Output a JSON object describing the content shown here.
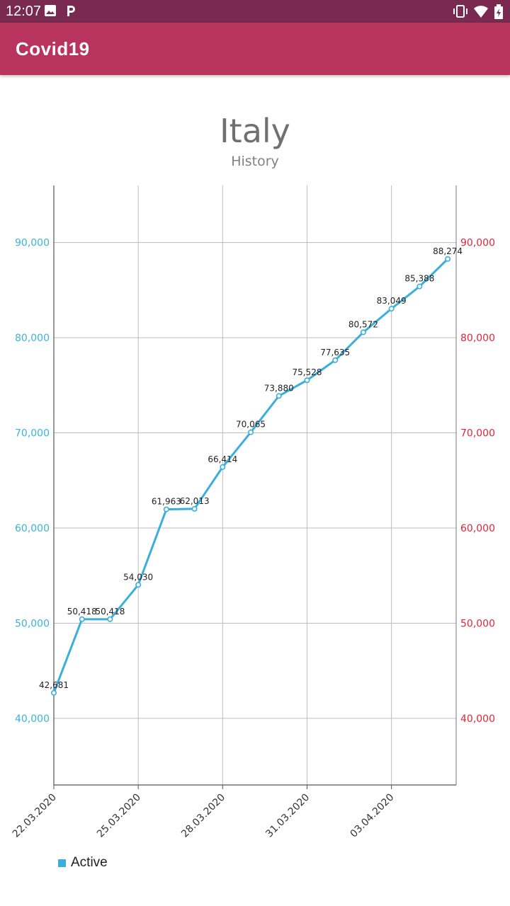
{
  "status_bar": {
    "time": "12:07",
    "left_icons": [
      "image-icon",
      "parking-icon"
    ],
    "right_icons": [
      "vibrate-icon",
      "wifi-icon",
      "battery-icon"
    ]
  },
  "app_bar": {
    "title": "Covid19"
  },
  "page": {
    "country": "Italy",
    "subtitle": "History"
  },
  "colors": {
    "status_bar": "#7a2a50",
    "app_bar": "#b8345c",
    "series": "#3aafdc",
    "left_axis": "#3ab4dc",
    "right_axis": "#e0263a",
    "grid": "#bdbdbd"
  },
  "chart_data": {
    "type": "line",
    "x": [
      "22.03.2020",
      "23.03.2020",
      "24.03.2020",
      "25.03.2020",
      "26.03.2020",
      "27.03.2020",
      "28.03.2020",
      "29.03.2020",
      "30.03.2020",
      "31.03.2020",
      "01.04.2020",
      "02.04.2020",
      "03.04.2020",
      "04.04.2020",
      "05.04.2020"
    ],
    "x_tick_labels": [
      "22.03.2020",
      "25.03.2020",
      "28.03.2020",
      "31.03.2020",
      "03.04.2020"
    ],
    "series": [
      {
        "name": "Active",
        "values": [
          42681,
          50418,
          50418,
          54030,
          61963,
          62013,
          66414,
          70065,
          73880,
          75528,
          77635,
          80572,
          83049,
          85388,
          88274
        ],
        "data_labels": [
          "42,681",
          "50,418",
          "50,418",
          "54,030",
          "61,963",
          "62,013",
          "66,414",
          "70,065",
          "73,880",
          "75,528",
          "77,635",
          "80,572",
          "83,049",
          "85,388",
          "88,274"
        ]
      }
    ],
    "ylim": [
      33000,
      96000
    ],
    "y_ticks": [
      40000,
      50000,
      60000,
      70000,
      80000,
      90000
    ],
    "y_tick_labels_left": [
      "40,000",
      "50,000",
      "60,000",
      "70,000",
      "80,000",
      "90,000"
    ],
    "y_tick_labels_right": [
      "40,000",
      "50,000",
      "60,000",
      "70,000",
      "80,000",
      "90,000"
    ],
    "grid": true,
    "legend_position": "bottom-left",
    "x_label_rotation": "-45deg"
  }
}
